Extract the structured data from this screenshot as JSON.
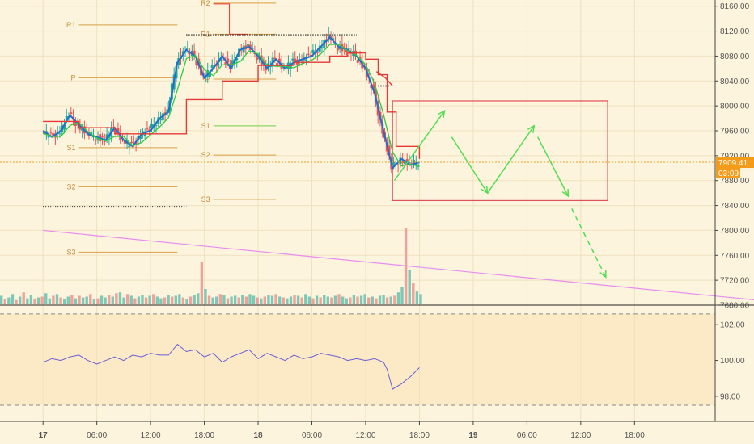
{
  "chart_data": {
    "type": "candlestick",
    "main_panel": {
      "y_axis": {
        "ticks": [
          "8160.00",
          "8120.00",
          "8080.00",
          "8040.00",
          "8000.00",
          "7960.00",
          "7920.00",
          "7880.00",
          "7840.00",
          "7800.00",
          "7760.00",
          "7720.00",
          "7680.00"
        ],
        "values": [
          8160,
          8120,
          8080,
          8040,
          8000,
          7960,
          7920,
          7880,
          7840,
          7800,
          7760,
          7720,
          7680
        ],
        "range": [
          7680,
          8170
        ]
      },
      "last_price": "7909.41",
      "last_price_value": 7909.41,
      "countdown": "03:09",
      "pivot_levels": [
        {
          "label": "R2",
          "value": 8165,
          "x_start": 9.5,
          "x_end": 13
        },
        {
          "label": "R1",
          "value": 8130,
          "x_start": 2,
          "x_end": 7.5
        },
        {
          "label": "R1",
          "value": 8115,
          "x_start": 9.5,
          "x_end": 13
        },
        {
          "label": "P",
          "value": 8045,
          "x_start": 2,
          "x_end": 7.5
        },
        {
          "label": "P",
          "value": 8043,
          "x_start": 9.5,
          "x_end": 13
        },
        {
          "label": "S1",
          "value": 7933,
          "x_start": 2,
          "x_end": 7.5
        },
        {
          "label": "S1",
          "value": 7968,
          "x_start": 9.5,
          "x_end": 13
        },
        {
          "label": "S2",
          "value": 7870,
          "x_start": 2,
          "x_end": 7.5
        },
        {
          "label": "S2",
          "value": 7921,
          "x_start": 9.5,
          "x_end": 13
        },
        {
          "label": "S3",
          "value": 7765,
          "x_start": 2,
          "x_end": 7.5
        },
        {
          "label": "S3",
          "value": 7850,
          "x_start": 9.5,
          "x_end": 13
        }
      ],
      "price_series": [
        [
          0,
          7960
        ],
        [
          0.5,
          7950
        ],
        [
          1,
          7960
        ],
        [
          1.5,
          7985
        ],
        [
          2,
          7970
        ],
        [
          2.5,
          7955
        ],
        [
          3,
          7950
        ],
        [
          3.5,
          7945
        ],
        [
          4,
          7965
        ],
        [
          4.5,
          7945
        ],
        [
          5,
          7935
        ],
        [
          5.5,
          7955
        ],
        [
          6,
          7960
        ],
        [
          6.5,
          7980
        ],
        [
          7,
          7990
        ],
        [
          7.5,
          8070
        ],
        [
          8,
          8090
        ],
        [
          8.5,
          8080
        ],
        [
          9,
          8045
        ],
        [
          9.5,
          8060
        ],
        [
          10,
          8080
        ],
        [
          10.5,
          8060
        ],
        [
          11,
          8090
        ],
        [
          11.5,
          8095
        ],
        [
          12,
          8080
        ],
        [
          12.5,
          8060
        ],
        [
          13,
          8075
        ],
        [
          13.5,
          8060
        ],
        [
          14,
          8070
        ],
        [
          14.5,
          8075
        ],
        [
          15,
          8080
        ],
        [
          15.5,
          8095
        ],
        [
          16,
          8110
        ],
        [
          16.5,
          8095
        ],
        [
          17,
          8090
        ],
        [
          17.5,
          8080
        ],
        [
          18,
          8060
        ],
        [
          18.5,
          8020
        ],
        [
          19,
          7960
        ],
        [
          19.5,
          7900
        ],
        [
          20,
          7915
        ],
        [
          20.5,
          7905
        ],
        [
          21,
          7909.41
        ]
      ],
      "ma_series": [
        [
          0,
          7975
        ],
        [
          2,
          7965
        ],
        [
          4,
          7955
        ],
        [
          6,
          7955
        ],
        [
          8,
          8010
        ],
        [
          10,
          8040
        ],
        [
          12,
          8065
        ],
        [
          14,
          8070
        ],
        [
          16,
          8080
        ],
        [
          17,
          8085
        ],
        [
          18,
          8075
        ],
        [
          18.7,
          8050
        ],
        [
          19.2,
          7990
        ],
        [
          19.7,
          7935
        ],
        [
          21,
          7915
        ]
      ],
      "trend_line": [
        [
          0,
          7800
        ],
        [
          42,
          7682
        ]
      ],
      "box": {
        "x": [
          19.5,
          31.5
        ],
        "y": [
          7848,
          8008
        ]
      },
      "dotted_levels": [
        {
          "value": 8114,
          "x": [
            8,
            17.5
          ]
        },
        {
          "value": 7838,
          "x": [
            0,
            8
          ]
        },
        {
          "value": 8032,
          "x": [
            18.7,
            19.3
          ]
        }
      ]
    },
    "volume": {
      "values": [
        10,
        6,
        8,
        12,
        5,
        9,
        14,
        7,
        11,
        6,
        8,
        9,
        13,
        7,
        10,
        12,
        8,
        6,
        9,
        11,
        7,
        10,
        8,
        9,
        12,
        6,
        7,
        10,
        8,
        11,
        9,
        13,
        14,
        8,
        12,
        10,
        7,
        9,
        11,
        8,
        10,
        12,
        9,
        7,
        8,
        11,
        9,
        10,
        12,
        8,
        6,
        9,
        11,
        13,
        50,
        18,
        10,
        8,
        9,
        12,
        11,
        7,
        9,
        10,
        8,
        11,
        9,
        12,
        10,
        8,
        7,
        9,
        11,
        10,
        12,
        9,
        8,
        7,
        9,
        11,
        10,
        8,
        12,
        9,
        7,
        10,
        8,
        11,
        9,
        8,
        10,
        12,
        9,
        7,
        8,
        11,
        9,
        10,
        12,
        8,
        9,
        7,
        10,
        11,
        8,
        9,
        10,
        14,
        20,
        90,
        40,
        25,
        15,
        12
      ]
    },
    "oscillator": {
      "y_axis": {
        "ticks": [
          "102.00",
          "100.00",
          "98.00"
        ],
        "values": [
          102,
          100,
          98
        ],
        "range": [
          96.6,
          103
        ]
      },
      "upper_band": 102.6,
      "lower_band": 97.5,
      "series": [
        [
          0,
          99.9
        ],
        [
          0.5,
          100.1
        ],
        [
          1,
          100.0
        ],
        [
          1.5,
          100.2
        ],
        [
          2,
          100.3
        ],
        [
          2.5,
          100.0
        ],
        [
          3,
          99.8
        ],
        [
          3.5,
          100.0
        ],
        [
          4,
          100.2
        ],
        [
          4.5,
          100.0
        ],
        [
          5,
          100.3
        ],
        [
          5.5,
          100.2
        ],
        [
          6,
          100.4
        ],
        [
          6.5,
          100.3
        ],
        [
          7,
          100.3
        ],
        [
          7.5,
          100.9
        ],
        [
          8,
          100.5
        ],
        [
          8.5,
          100.6
        ],
        [
          9,
          100.2
        ],
        [
          9.5,
          100.4
        ],
        [
          10,
          99.9
        ],
        [
          10.5,
          100.2
        ],
        [
          11,
          100.4
        ],
        [
          11.5,
          100.6
        ],
        [
          12,
          100.1
        ],
        [
          12.5,
          100.4
        ],
        [
          13,
          100.2
        ],
        [
          13.5,
          100.0
        ],
        [
          14,
          100.3
        ],
        [
          14.5,
          100.1
        ],
        [
          15,
          100.2
        ],
        [
          15.5,
          100.4
        ],
        [
          16,
          100.3
        ],
        [
          16.5,
          100.2
        ],
        [
          17,
          100.0
        ],
        [
          17.5,
          100.1
        ],
        [
          18,
          100.0
        ],
        [
          18.5,
          100.1
        ],
        [
          19,
          99.9
        ],
        [
          19.2,
          99.5
        ],
        [
          19.5,
          98.4
        ],
        [
          20,
          98.7
        ],
        [
          20.5,
          99.1
        ],
        [
          21,
          99.6
        ]
      ]
    },
    "x_axis": {
      "ticks": [
        {
          "label": "17",
          "value": 0
        },
        {
          "label": "06:00",
          "value": 3
        },
        {
          "label": "12:00",
          "value": 6
        },
        {
          "label": "18:00",
          "value": 9
        },
        {
          "label": "18",
          "value": 12
        },
        {
          "label": "06:00",
          "value": 15
        },
        {
          "label": "12:00",
          "value": 18
        },
        {
          "label": "18:00",
          "value": 21
        },
        {
          "label": "19",
          "value": 24
        },
        {
          "label": "06:00",
          "value": 27
        },
        {
          "label": "12:00",
          "value": 30
        },
        {
          "label": "18:00",
          "value": 33
        }
      ],
      "range": [
        -2.4,
        37.5
      ]
    },
    "projection_arrows": [
      {
        "style": "solid",
        "points": [
          [
            19.6,
            7880
          ],
          [
            22.4,
            7992
          ]
        ]
      },
      {
        "style": "solid",
        "points": [
          [
            22.8,
            7950
          ],
          [
            24.8,
            7860
          ]
        ]
      },
      {
        "style": "solid",
        "points": [
          [
            24.8,
            7860
          ],
          [
            27.4,
            7968
          ]
        ]
      },
      {
        "style": "solid",
        "points": [
          [
            27.6,
            7950
          ],
          [
            29.3,
            7855
          ]
        ]
      },
      {
        "style": "dashed",
        "points": [
          [
            29.5,
            7835
          ],
          [
            31.4,
            7725
          ]
        ]
      }
    ],
    "colors": {
      "background": "#fcf4dc",
      "candle_up": "#26a69a",
      "candle_down": "#ef5350",
      "price_line": "#1f6fd0",
      "ma_line": "#e53935",
      "pivot": "#d9a14a",
      "pivot_inner": "#6fce4a",
      "trend_line": "#e88cf0",
      "box": "#e0505a",
      "arrow": "#55dd55",
      "oscillator": "#6a5fd8",
      "price_tag": "#f59b1a",
      "axis_text": "#555555"
    }
  }
}
